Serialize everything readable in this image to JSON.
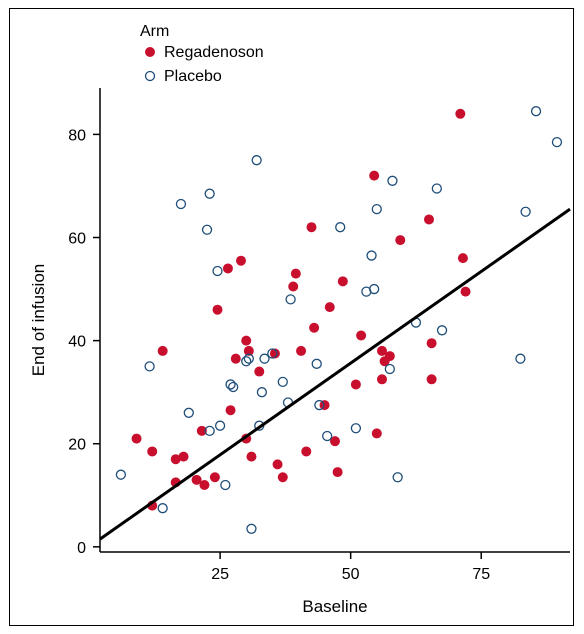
{
  "chart_data": {
    "type": "scatter",
    "title": "",
    "xlabel": "Baseline",
    "ylabel": "End of infusion",
    "xlim": [
      2,
      92
    ],
    "ylim": [
      -1,
      89
    ],
    "xticks": [
      25,
      50,
      75
    ],
    "yticks": [
      0,
      20,
      40,
      60,
      80
    ],
    "grid": false,
    "legend": {
      "title": "Arm",
      "position": "top-left",
      "entries": [
        "Regadenoson",
        "Placebo"
      ]
    },
    "series": [
      {
        "name": "Regadenoson",
        "color": "#c8102e",
        "marker": "filled-circle",
        "points": [
          [
            9,
            21
          ],
          [
            12,
            18.5
          ],
          [
            12,
            8
          ],
          [
            14,
            38
          ],
          [
            16.5,
            12.5
          ],
          [
            16.5,
            17
          ],
          [
            18,
            17.5
          ],
          [
            20.5,
            13
          ],
          [
            21.5,
            22.5
          ],
          [
            22,
            12
          ],
          [
            24,
            13.5
          ],
          [
            24.5,
            46
          ],
          [
            26.5,
            54
          ],
          [
            27,
            26.5
          ],
          [
            28,
            36.5
          ],
          [
            29,
            55.5
          ],
          [
            30,
            21
          ],
          [
            30,
            40
          ],
          [
            30.5,
            38
          ],
          [
            31,
            17.5
          ],
          [
            32.5,
            34
          ],
          [
            35.5,
            37.5
          ],
          [
            36,
            16
          ],
          [
            37,
            13.5
          ],
          [
            39,
            50.5
          ],
          [
            39.5,
            53
          ],
          [
            40.5,
            38
          ],
          [
            41.5,
            18.5
          ],
          [
            42.5,
            62
          ],
          [
            43,
            42.5
          ],
          [
            45,
            27.5
          ],
          [
            46,
            46.5
          ],
          [
            47,
            20.5
          ],
          [
            47.5,
            14.5
          ],
          [
            48.5,
            51.5
          ],
          [
            51,
            31.5
          ],
          [
            52,
            41
          ],
          [
            54.5,
            72
          ],
          [
            55,
            22
          ],
          [
            56,
            38
          ],
          [
            56,
            32.5
          ],
          [
            56.5,
            36
          ],
          [
            57.5,
            37
          ],
          [
            59.5,
            59.5
          ],
          [
            65,
            63.5
          ],
          [
            65.5,
            39.5
          ],
          [
            65.5,
            32.5
          ],
          [
            71,
            84
          ],
          [
            71.5,
            56
          ],
          [
            72,
            49.5
          ]
        ]
      },
      {
        "name": "Placebo",
        "color": "#1f4e79",
        "marker": "open-circle",
        "points": [
          [
            6,
            14
          ],
          [
            11.5,
            35
          ],
          [
            14,
            7.5
          ],
          [
            17.5,
            66.5
          ],
          [
            19,
            26
          ],
          [
            22.5,
            61.5
          ],
          [
            23,
            68.5
          ],
          [
            23,
            22.5
          ],
          [
            24.5,
            53.5
          ],
          [
            25,
            23.5
          ],
          [
            26,
            12
          ],
          [
            27,
            31.5
          ],
          [
            27.5,
            31
          ],
          [
            30,
            36
          ],
          [
            30.5,
            36.5
          ],
          [
            31,
            3.5
          ],
          [
            32,
            75
          ],
          [
            32.5,
            23.5
          ],
          [
            33,
            30
          ],
          [
            33.5,
            36.5
          ],
          [
            35,
            37.5
          ],
          [
            37,
            32
          ],
          [
            38,
            28
          ],
          [
            38.5,
            48
          ],
          [
            43.5,
            35.5
          ],
          [
            44,
            27.5
          ],
          [
            45.5,
            21.5
          ],
          [
            48,
            62
          ],
          [
            51,
            23
          ],
          [
            53,
            49.5
          ],
          [
            54,
            56.5
          ],
          [
            54.5,
            50
          ],
          [
            55,
            65.5
          ],
          [
            57.5,
            34.5
          ],
          [
            58,
            71
          ],
          [
            59,
            13.5
          ],
          [
            62.5,
            43.5
          ],
          [
            66.5,
            69.5
          ],
          [
            67.5,
            42
          ],
          [
            82.5,
            36.5
          ],
          [
            83.5,
            65
          ],
          [
            85.5,
            84.5
          ],
          [
            89.5,
            78.5
          ]
        ]
      }
    ],
    "fit_line": {
      "type": "linear",
      "color": "#000000",
      "points": [
        [
          2,
          1.5
        ],
        [
          92,
          65.5
        ]
      ]
    }
  }
}
